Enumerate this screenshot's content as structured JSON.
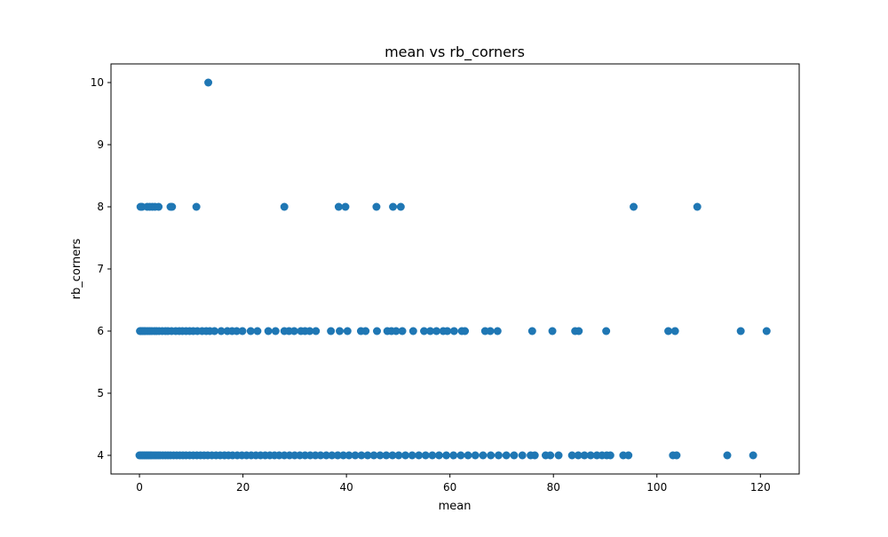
{
  "chart_data": {
    "type": "scatter",
    "title": "mean vs rb_corners",
    "xlabel": "mean",
    "ylabel": "rb_corners",
    "xlim": [
      -5.5,
      127.5
    ],
    "ylim": [
      3.7,
      10.3
    ],
    "xticks": [
      0,
      20,
      40,
      60,
      80,
      100,
      120
    ],
    "yticks": [
      4,
      5,
      6,
      7,
      8,
      9,
      10
    ],
    "grid": false,
    "marker_color": "#1f77b4",
    "series": [
      {
        "points": [
          [
            13.3,
            10
          ],
          [
            0.2,
            8
          ],
          [
            0.5,
            8
          ],
          [
            1.5,
            8
          ],
          [
            2.0,
            8
          ],
          [
            2.5,
            8
          ],
          [
            3.0,
            8
          ],
          [
            3.7,
            8
          ],
          [
            6.0,
            8
          ],
          [
            6.3,
            8
          ],
          [
            11.0,
            8
          ],
          [
            28.0,
            8
          ],
          [
            38.5,
            8
          ],
          [
            39.8,
            8
          ],
          [
            45.8,
            8
          ],
          [
            49.0,
            8
          ],
          [
            50.5,
            8
          ],
          [
            95.5,
            8
          ],
          [
            107.8,
            8
          ],
          [
            0.1,
            6
          ],
          [
            0.3,
            6
          ],
          [
            0.6,
            6
          ],
          [
            0.9,
            6
          ],
          [
            1.2,
            6
          ],
          [
            1.6,
            6
          ],
          [
            2.0,
            6
          ],
          [
            2.4,
            6
          ],
          [
            2.9,
            6
          ],
          [
            3.3,
            6
          ],
          [
            3.8,
            6
          ],
          [
            4.4,
            6
          ],
          [
            5.0,
            6
          ],
          [
            5.5,
            6
          ],
          [
            6.2,
            6
          ],
          [
            7.0,
            6
          ],
          [
            7.7,
            6
          ],
          [
            8.3,
            6
          ],
          [
            9.0,
            6
          ],
          [
            9.7,
            6
          ],
          [
            10.4,
            6
          ],
          [
            11.2,
            6
          ],
          [
            12.1,
            6
          ],
          [
            12.9,
            6
          ],
          [
            13.6,
            6
          ],
          [
            14.5,
            6
          ],
          [
            15.8,
            6
          ],
          [
            17.0,
            6
          ],
          [
            17.9,
            6
          ],
          [
            18.8,
            6
          ],
          [
            19.9,
            6
          ],
          [
            21.5,
            6
          ],
          [
            22.8,
            6
          ],
          [
            24.9,
            6
          ],
          [
            26.3,
            6
          ],
          [
            28.0,
            6
          ],
          [
            28.9,
            6
          ],
          [
            29.9,
            6
          ],
          [
            31.2,
            6
          ],
          [
            32.0,
            6
          ],
          [
            32.9,
            6
          ],
          [
            34.1,
            6
          ],
          [
            37.0,
            6
          ],
          [
            38.7,
            6
          ],
          [
            40.2,
            6
          ],
          [
            42.8,
            6
          ],
          [
            43.7,
            6
          ],
          [
            45.9,
            6
          ],
          [
            47.9,
            6
          ],
          [
            48.7,
            6
          ],
          [
            49.6,
            6
          ],
          [
            50.8,
            6
          ],
          [
            52.9,
            6
          ],
          [
            55.0,
            6
          ],
          [
            56.2,
            6
          ],
          [
            57.4,
            6
          ],
          [
            58.7,
            6
          ],
          [
            59.5,
            6
          ],
          [
            60.8,
            6
          ],
          [
            62.3,
            6
          ],
          [
            62.9,
            6
          ],
          [
            66.8,
            6
          ],
          [
            67.8,
            6
          ],
          [
            69.2,
            6
          ],
          [
            75.9,
            6
          ],
          [
            79.8,
            6
          ],
          [
            84.2,
            6
          ],
          [
            84.9,
            6
          ],
          [
            90.2,
            6
          ],
          [
            102.2,
            6
          ],
          [
            103.5,
            6
          ],
          [
            116.2,
            6
          ],
          [
            121.2,
            6
          ],
          [
            0.0,
            4
          ],
          [
            0.3,
            4
          ],
          [
            0.6,
            4
          ],
          [
            0.9,
            4
          ],
          [
            1.2,
            4
          ],
          [
            1.5,
            4
          ],
          [
            1.8,
            4
          ],
          [
            2.1,
            4
          ],
          [
            2.4,
            4
          ],
          [
            2.8,
            4
          ],
          [
            3.2,
            4
          ],
          [
            3.6,
            4
          ],
          [
            4.0,
            4
          ],
          [
            4.5,
            4
          ],
          [
            5.0,
            4
          ],
          [
            5.5,
            4
          ],
          [
            6.0,
            4
          ],
          [
            6.6,
            4
          ],
          [
            7.2,
            4
          ],
          [
            7.8,
            4
          ],
          [
            8.4,
            4
          ],
          [
            9.0,
            4
          ],
          [
            9.7,
            4
          ],
          [
            10.4,
            4
          ],
          [
            11.1,
            4
          ],
          [
            11.8,
            4
          ],
          [
            12.5,
            4
          ],
          [
            13.2,
            4
          ],
          [
            14.0,
            4
          ],
          [
            14.8,
            4
          ],
          [
            15.6,
            4
          ],
          [
            16.4,
            4
          ],
          [
            17.2,
            4
          ],
          [
            18.0,
            4
          ],
          [
            18.9,
            4
          ],
          [
            19.8,
            4
          ],
          [
            20.7,
            4
          ],
          [
            21.6,
            4
          ],
          [
            22.5,
            4
          ],
          [
            23.4,
            4
          ],
          [
            24.3,
            4
          ],
          [
            25.2,
            4
          ],
          [
            26.1,
            4
          ],
          [
            27.0,
            4
          ],
          [
            28.0,
            4
          ],
          [
            29.0,
            4
          ],
          [
            30.0,
            4
          ],
          [
            31.0,
            4
          ],
          [
            32.0,
            4
          ],
          [
            33.0,
            4
          ],
          [
            34.0,
            4
          ],
          [
            35.0,
            4
          ],
          [
            36.1,
            4
          ],
          [
            37.2,
            4
          ],
          [
            38.3,
            4
          ],
          [
            39.4,
            4
          ],
          [
            40.5,
            4
          ],
          [
            41.7,
            4
          ],
          [
            42.9,
            4
          ],
          [
            44.1,
            4
          ],
          [
            45.3,
            4
          ],
          [
            46.5,
            4
          ],
          [
            47.7,
            4
          ],
          [
            48.9,
            4
          ],
          [
            50.1,
            4
          ],
          [
            51.4,
            4
          ],
          [
            52.7,
            4
          ],
          [
            54.0,
            4
          ],
          [
            55.3,
            4
          ],
          [
            56.6,
            4
          ],
          [
            57.9,
            4
          ],
          [
            59.3,
            4
          ],
          [
            60.7,
            4
          ],
          [
            62.1,
            4
          ],
          [
            63.5,
            4
          ],
          [
            64.9,
            4
          ],
          [
            66.4,
            4
          ],
          [
            67.9,
            4
          ],
          [
            69.4,
            4
          ],
          [
            70.9,
            4
          ],
          [
            72.4,
            4
          ],
          [
            74.0,
            4
          ],
          [
            75.6,
            4
          ],
          [
            76.4,
            4
          ],
          [
            78.5,
            4
          ],
          [
            79.4,
            4
          ],
          [
            81.0,
            4
          ],
          [
            83.6,
            4
          ],
          [
            84.8,
            4
          ],
          [
            86.0,
            4
          ],
          [
            87.2,
            4
          ],
          [
            88.4,
            4
          ],
          [
            89.4,
            4
          ],
          [
            90.3,
            4
          ],
          [
            91.0,
            4
          ],
          [
            93.5,
            4
          ],
          [
            94.5,
            4
          ],
          [
            103.1,
            4
          ],
          [
            103.8,
            4
          ],
          [
            113.6,
            4
          ],
          [
            118.6,
            4
          ]
        ]
      }
    ]
  }
}
